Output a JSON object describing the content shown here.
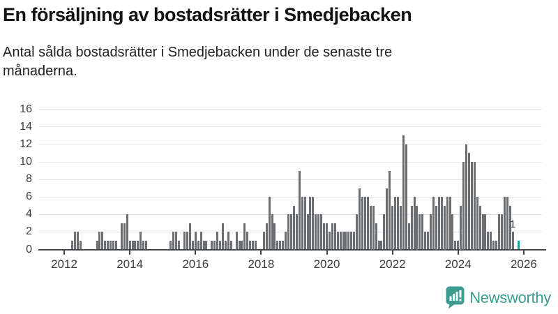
{
  "header": {
    "title": "En försäljning av bostadsrätter i Smedjebacken",
    "subtitle": "Antal sålda bostadsrätter i Smedjebacken under de senaste tre månaderna."
  },
  "chart_data": {
    "type": "bar",
    "title": "En försäljning av bostadsrätter i Smedjebacken",
    "subtitle": "Antal sålda bostadsrätter i Smedjebacken under de senaste tre månaderna.",
    "xlabel": "",
    "ylabel": "",
    "ylim": [
      0,
      16
    ],
    "grid": true,
    "legend": false,
    "y_ticks": [
      0,
      2,
      4,
      6,
      8,
      10,
      12,
      14,
      16
    ],
    "x_tick_labels": [
      "2012",
      "2014",
      "2016",
      "2018",
      "2020",
      "2022",
      "2024",
      "2026"
    ],
    "x_start_month": "2012-01",
    "months_per_value": 1,
    "bar_color": "#6b6f74",
    "values": [
      0,
      0,
      0,
      1,
      2,
      2,
      1,
      0,
      0,
      0,
      0,
      0,
      1,
      2,
      2,
      1,
      1,
      1,
      1,
      1,
      0,
      3,
      3,
      4,
      1,
      1,
      1,
      1,
      2,
      1,
      1,
      0,
      0,
      0,
      0,
      0,
      0,
      0,
      0,
      1,
      2,
      2,
      1,
      0,
      2,
      2,
      3,
      1,
      2,
      1,
      2,
      1,
      1,
      0,
      1,
      1,
      2,
      1,
      3,
      1,
      2,
      1,
      0,
      2,
      1,
      1,
      3,
      2,
      1,
      1,
      1,
      0,
      0,
      2,
      3,
      6,
      4,
      3,
      1,
      1,
      1,
      2,
      4,
      4,
      5,
      4,
      9,
      6,
      6,
      4,
      6,
      6,
      4,
      4,
      4,
      3,
      3,
      2,
      3,
      3,
      2,
      2,
      2,
      2,
      2,
      2,
      2,
      4,
      7,
      6,
      6,
      6,
      5,
      5,
      3,
      1,
      1,
      4,
      7,
      9,
      5,
      6,
      6,
      5,
      13,
      12,
      3,
      5,
      6,
      5,
      4,
      4,
      2,
      2,
      4,
      6,
      5,
      6,
      6,
      5,
      6,
      6,
      4,
      1,
      1,
      5,
      10,
      12,
      11,
      10,
      10,
      6,
      5,
      4,
      4,
      2,
      2,
      1,
      1,
      4,
      4,
      6,
      6,
      5,
      2,
      0,
      1
    ],
    "highlight": {
      "index": 166,
      "value": 1,
      "label": "1",
      "color": "#18a09e"
    }
  },
  "branding": {
    "logo_text": "Newsworthy",
    "logo_color": "#3b9b8e",
    "icon": "newsworthy-speech-bubble-chart-icon"
  }
}
